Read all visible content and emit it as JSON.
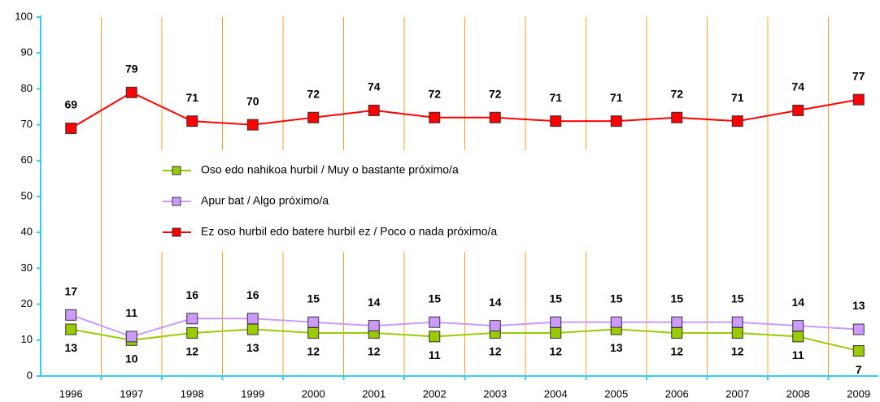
{
  "chart_data": {
    "type": "line",
    "categories": [
      "1996",
      "1997",
      "1998",
      "1999",
      "2000",
      "2001",
      "2002",
      "2003",
      "2004",
      "2005",
      "2006",
      "2007",
      "2008",
      "2009"
    ],
    "series": [
      {
        "name": "Oso edo nahikoa hurbil / Muy o bastante próximo/a",
        "color": "#99cc00",
        "values": [
          13,
          10,
          12,
          13,
          12,
          12,
          11,
          12,
          12,
          13,
          12,
          12,
          11,
          7
        ]
      },
      {
        "name": "Apur bat / Algo próximo/a",
        "color": "#cc99ff",
        "values": [
          17,
          11,
          16,
          16,
          15,
          14,
          15,
          14,
          15,
          15,
          15,
          15,
          14,
          13
        ]
      },
      {
        "name": "Ez oso hurbil edo batere hurbil ez / Poco o nada próximo/a",
        "color": "#ff0000",
        "values": [
          69,
          79,
          71,
          70,
          72,
          74,
          72,
          72,
          71,
          71,
          72,
          71,
          74,
          77
        ]
      }
    ],
    "ylim": [
      0,
      100
    ],
    "yticks": [
      0,
      10,
      20,
      30,
      40,
      50,
      60,
      70,
      80,
      90,
      100
    ],
    "legend": "center",
    "separator_color": "#f0a020",
    "axis_color": "#33ccff"
  }
}
